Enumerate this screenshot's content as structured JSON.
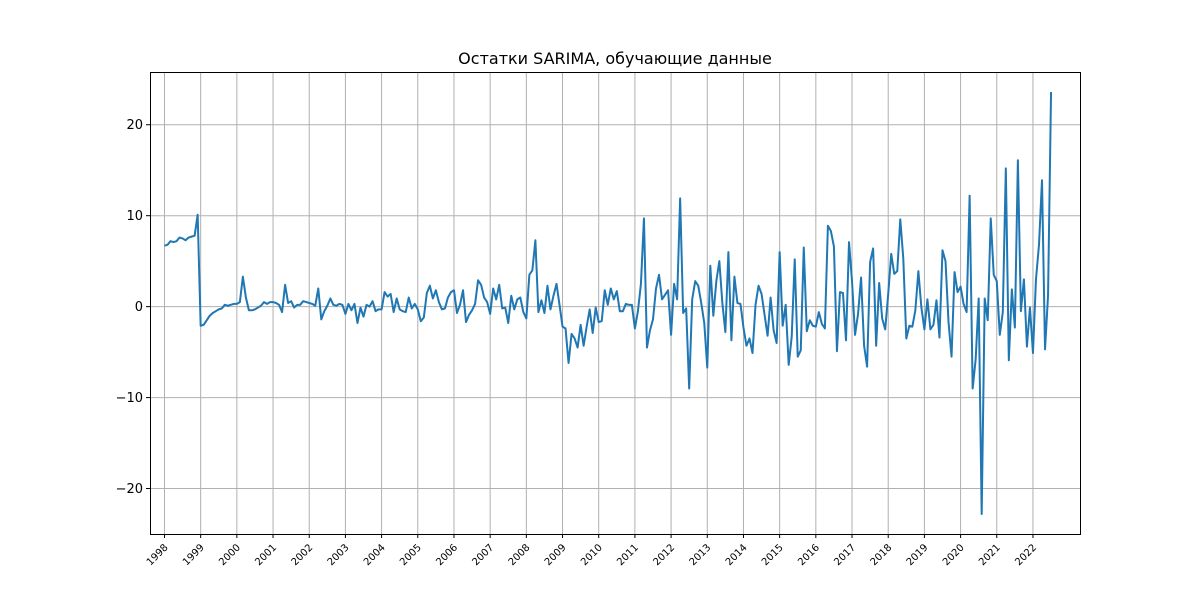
{
  "chart_data": {
    "type": "line",
    "title": "Остатки SARIMA, обучающие данные",
    "xlabel": "",
    "ylabel": "",
    "xlim": [
      1997.6,
      2023.3
    ],
    "ylim": [
      -25,
      25.8
    ],
    "grid": true,
    "line_color": "#1f77b4",
    "x_ticks": [
      "1998",
      "1999",
      "2000",
      "2001",
      "2002",
      "2003",
      "2004",
      "2005",
      "2006",
      "2007",
      "2008",
      "2009",
      "2010",
      "2011",
      "2012",
      "2013",
      "2014",
      "2015",
      "2016",
      "2017",
      "2018",
      "2019",
      "2020",
      "2021",
      "2022"
    ],
    "y_ticks": [
      {
        "value": 20,
        "label": "20"
      },
      {
        "value": 10,
        "label": "10"
      },
      {
        "value": 0,
        "label": "0"
      },
      {
        "value": -10,
        "label": "−10"
      },
      {
        "value": -20,
        "label": "−20"
      }
    ],
    "series": [
      {
        "start": "1998-01",
        "frequency": "monthly",
        "values": [
          6.7,
          6.8,
          7.2,
          7.1,
          7.2,
          7.6,
          7.5,
          7.3,
          7.6,
          7.7,
          7.8,
          10.1,
          -2.1,
          -2.0,
          -1.5,
          -1.0,
          -0.7,
          -0.5,
          -0.3,
          -0.2,
          0.2,
          0.1,
          0.2,
          0.3,
          0.3,
          0.5,
          3.3,
          1.0,
          -0.4,
          -0.4,
          -0.3,
          -0.1,
          0.1,
          0.5,
          0.3,
          0.5,
          0.5,
          0.4,
          0.2,
          -0.6,
          2.4,
          0.4,
          0.6,
          -0.1,
          0.2,
          0.2,
          0.6,
          0.5,
          0.4,
          0.3,
          0.1,
          2.0,
          -1.4,
          -0.5,
          0.1,
          0.9,
          0.2,
          0.1,
          0.3,
          0.2,
          -0.8,
          0.3,
          -0.4,
          0.3,
          -1.8,
          -0.1,
          -1.1,
          0.2,
          0.0,
          0.6,
          -0.5,
          -0.3,
          -0.3,
          1.6,
          1.1,
          1.4,
          -0.6,
          0.9,
          -0.3,
          -0.5,
          -0.6,
          1.0,
          -0.2,
          0.3,
          -0.3,
          -1.6,
          -1.2,
          1.5,
          2.3,
          0.9,
          1.8,
          0.5,
          -0.3,
          -0.2,
          1.0,
          1.6,
          1.8,
          -0.7,
          0.2,
          1.8,
          -1.7,
          -0.9,
          -0.4,
          0.3,
          2.9,
          2.4,
          1.0,
          0.5,
          -0.8,
          2.0,
          0.8,
          2.4,
          -0.2,
          -0.1,
          -1.8,
          1.2,
          -0.3,
          0.8,
          1.0,
          -0.6,
          -1.3,
          3.5,
          4.0,
          7.3,
          -0.6,
          0.7,
          -0.7,
          2.3,
          -0.3,
          1.2,
          2.5,
          0.2,
          -2.2,
          -2.4,
          -6.2,
          -3.0,
          -3.5,
          -4.5,
          -2.0,
          -4.3,
          -2.2,
          -0.3,
          -2.9,
          -0.1,
          -1.7,
          -1.6,
          1.8,
          0.2,
          2.0,
          0.8,
          1.7,
          -0.5,
          -0.5,
          0.3,
          0.2,
          0.2,
          -2.4,
          -0.5,
          2.5,
          9.7,
          -4.5,
          -2.6,
          -1.4,
          2.0,
          3.5,
          0.8,
          1.3,
          1.8,
          -3.1,
          2.5,
          0.8,
          11.9,
          -0.7,
          -0.2,
          -9.0,
          0.8,
          2.8,
          2.3,
          0.4,
          -1.8,
          -6.7,
          4.5,
          -1.0,
          2.8,
          5.0,
          0.4,
          -2.8,
          6.0,
          -3.7,
          3.3,
          0.4,
          0.3,
          -2.3,
          -4.3,
          -3.5,
          -5.1,
          0.2,
          2.3,
          1.4,
          -0.9,
          -3.2,
          1.0,
          -2.6,
          -4.0,
          6.0,
          -2.1,
          0.2,
          -6.4,
          -3.3,
          5.2,
          -5.5,
          -4.8,
          6.5,
          -2.7,
          -1.5,
          -2.1,
          -2.2,
          -0.6,
          -1.9,
          -2.4,
          8.9,
          8.3,
          6.6,
          -4.9,
          1.6,
          1.5,
          -3.7,
          7.1,
          2.8,
          -3.1,
          -0.8,
          3.2,
          -4.3,
          -6.6,
          4.9,
          6.4,
          -4.3,
          2.6,
          -1.3,
          -2.5,
          1.4,
          5.8,
          3.6,
          3.9,
          9.6,
          5.3,
          -3.5,
          -2.1,
          -2.2,
          -0.4,
          3.9,
          -0.1,
          -2.5,
          0.8,
          -2.5,
          -2.0,
          0.7,
          -3.4,
          6.2,
          5.0,
          -1.7,
          -5.5,
          3.8,
          1.6,
          2.2,
          0.3,
          -0.6,
          12.2,
          -9.0,
          -5.8,
          0.9,
          -22.8,
          0.9,
          -1.5,
          9.7,
          3.5,
          2.8,
          -3.1,
          -0.6,
          15.2,
          -5.9,
          1.9,
          -2.3,
          16.1,
          -0.5,
          3.0,
          -4.4,
          -0.1,
          -5.1,
          3.0,
          6.8,
          13.9,
          -4.7,
          1.2,
          23.6
        ]
      }
    ]
  }
}
